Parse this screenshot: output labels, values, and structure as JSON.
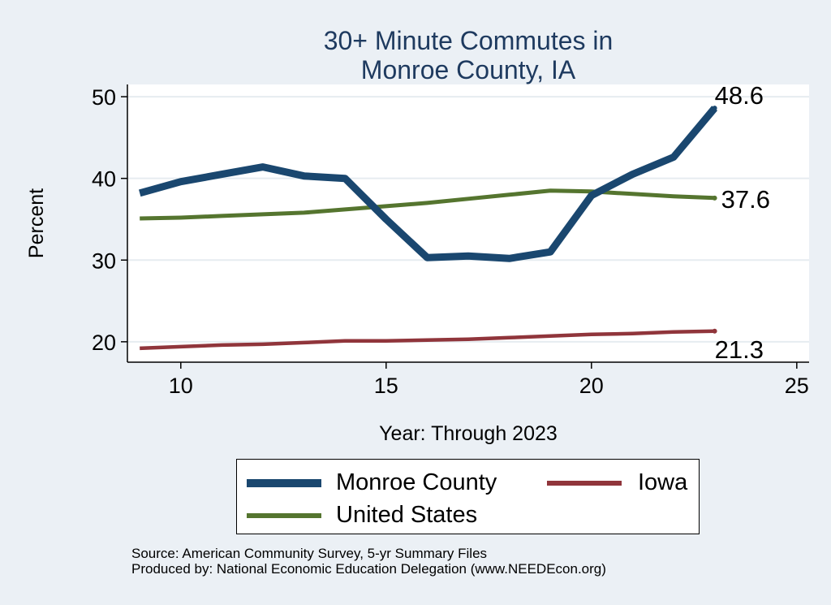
{
  "chart_data": {
    "type": "line",
    "title": [
      "30+ Minute Commutes in",
      "Monroe County, IA"
    ],
    "xlabel": "Year: Through 2023",
    "ylabel": "Percent",
    "xlim": [
      8.7,
      25.3
    ],
    "ylim": [
      17.5,
      51.5
    ],
    "xticks": [
      10,
      15,
      20,
      25
    ],
    "yticks": [
      20,
      30,
      40,
      50
    ],
    "grid": true,
    "legend_position": "bottom",
    "series": [
      {
        "name": "Monroe County",
        "color": "#1a476f",
        "x": [
          9,
          10,
          11,
          12,
          13,
          14,
          15,
          16,
          17,
          18,
          19,
          20,
          21,
          22,
          23
        ],
        "values": [
          38.2,
          39.6,
          40.5,
          41.4,
          40.3,
          40.0,
          35.0,
          30.3,
          30.5,
          30.2,
          31.0,
          37.9,
          40.5,
          42.6,
          48.6
        ],
        "end_label": "48.6"
      },
      {
        "name": "Iowa",
        "color": "#90353b",
        "x": [
          9,
          10,
          11,
          12,
          13,
          14,
          15,
          16,
          17,
          18,
          19,
          20,
          21,
          22,
          23
        ],
        "values": [
          19.2,
          19.4,
          19.6,
          19.7,
          19.9,
          20.1,
          20.1,
          20.2,
          20.3,
          20.5,
          20.7,
          20.9,
          21.0,
          21.2,
          21.3
        ],
        "end_label": "21.3"
      },
      {
        "name": "United States",
        "color": "#55752f",
        "x": [
          9,
          10,
          11,
          12,
          13,
          14,
          15,
          16,
          17,
          18,
          19,
          20,
          21,
          22,
          23
        ],
        "values": [
          35.1,
          35.2,
          35.4,
          35.6,
          35.8,
          36.2,
          36.6,
          37.0,
          37.5,
          38.0,
          38.5,
          38.4,
          38.1,
          37.8,
          37.6
        ],
        "end_label": "37.6"
      }
    ]
  },
  "footer": {
    "source": "Source: American Community Survey, 5-yr Summary Files",
    "producer": "Produced by: National Economic Education Delegation (www.NEEDEcon.org)"
  }
}
